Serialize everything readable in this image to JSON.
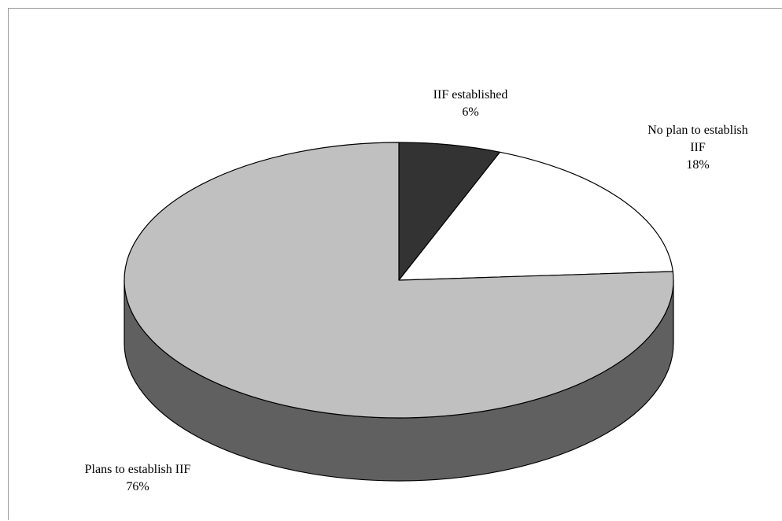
{
  "chart_data": {
    "type": "pie",
    "style": "3d",
    "title": "",
    "slices": [
      {
        "label_lines": [
          "IIF established"
        ],
        "value": 6,
        "value_label": "6%",
        "color": "#333333"
      },
      {
        "label_lines": [
          "No plan to establish",
          "IIF"
        ],
        "value": 18,
        "value_label": "18%",
        "color": "#ffffff"
      },
      {
        "label_lines": [
          "Plans to establish IIF"
        ],
        "value": 76,
        "value_label": "76%",
        "color": "#c0c0c0"
      }
    ],
    "side_color": "#606060",
    "outline_color": "#000000",
    "legend": "none"
  }
}
